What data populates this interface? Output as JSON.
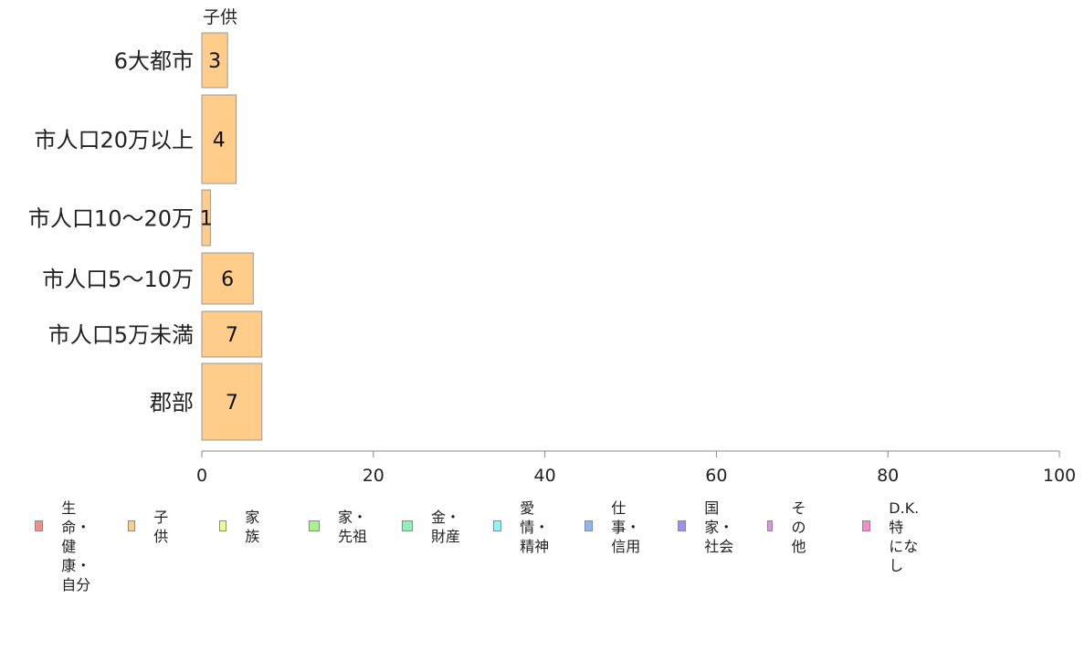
{
  "chart_data": {
    "type": "bar",
    "orientation": "horizontal",
    "series_title": "子供",
    "categories": [
      "6大都市",
      "市人口20万以上",
      "市人口10〜20万",
      "市人口5〜10万",
      "市人口5万未満",
      "郡部"
    ],
    "values": [
      3,
      4,
      1,
      6,
      7,
      7
    ],
    "xlim": [
      0,
      100
    ],
    "xticks": [
      0,
      20,
      40,
      60,
      80,
      100
    ],
    "grid": false,
    "bar_color": "#FFCC8A",
    "bar_edge": "#999999",
    "legend_position": "bottom"
  },
  "legend": [
    {
      "label": "生命・\n健康・\n自分",
      "color": "#F48C8C"
    },
    {
      "label": "子供",
      "color": "#FFCC8A"
    },
    {
      "label": "家族",
      "color": "#EEFF8C"
    },
    {
      "label": "家・\n先祖",
      "color": "#A6F48C"
    },
    {
      "label": "金・\n財産",
      "color": "#8CF4B0"
    },
    {
      "label": "愛情・\n精神",
      "color": "#8CF8F8"
    },
    {
      "label": "仕事・\n信用",
      "color": "#8CB6F4"
    },
    {
      "label": "国家・\n社会",
      "color": "#9C8CF4"
    },
    {
      "label": "その他",
      "color": "#E48CF4"
    },
    {
      "label": "D.K.特\nになし",
      "color": "#F48CC8"
    }
  ]
}
